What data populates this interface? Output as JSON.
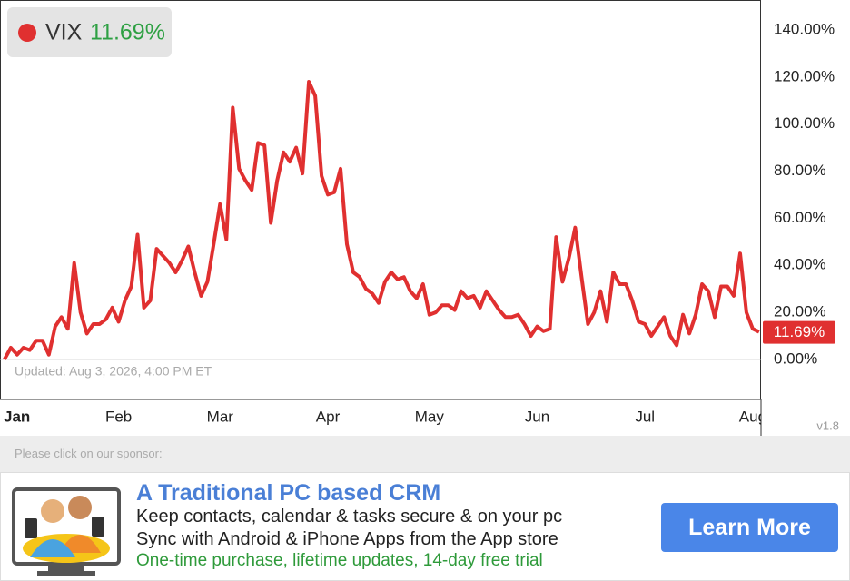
{
  "chart_data": {
    "type": "line",
    "title": "VIX",
    "last_value_label": "11.69%",
    "updated": "Updated: Aug 3, 2026, 4:00 PM ET",
    "version": "v1.8",
    "series": [
      {
        "name": "VIX",
        "color": "#e03030",
        "values": [
          0,
          5,
          2,
          5,
          4,
          8,
          8,
          2,
          14,
          18,
          13,
          41,
          20,
          11,
          15,
          15,
          17,
          22,
          16,
          25,
          31,
          53,
          22,
          25,
          47,
          44,
          41,
          37,
          42,
          48,
          37,
          27,
          33,
          49,
          66,
          51,
          107,
          81,
          76,
          72,
          92,
          91,
          58,
          76,
          88,
          84,
          90,
          79,
          118,
          112,
          78,
          70,
          71,
          81,
          49,
          37,
          35,
          30,
          28,
          24,
          33,
          37,
          34,
          35,
          29,
          26,
          32,
          19,
          20,
          23,
          23,
          21,
          29,
          26,
          27,
          22,
          29,
          25,
          21,
          18,
          18,
          19,
          15,
          10,
          14,
          12,
          13,
          52,
          33,
          43,
          56,
          35,
          15,
          20,
          29,
          16,
          37,
          32,
          32,
          25,
          16,
          15,
          10,
          14,
          18,
          10,
          6,
          19,
          11,
          19,
          32,
          29,
          18,
          31,
          31,
          27,
          45,
          20,
          13,
          11.69
        ]
      }
    ],
    "xlim": [
      -0.7,
      119.3
    ],
    "xticks": [
      {
        "value": 2,
        "label": "Jan"
      },
      {
        "value": 18,
        "label": "Feb"
      },
      {
        "value": 34,
        "label": "Mar"
      },
      {
        "value": 51,
        "label": "Apr"
      },
      {
        "value": 67,
        "label": "May"
      },
      {
        "value": 84,
        "label": "Jun"
      },
      {
        "value": 101,
        "label": "Jul"
      },
      {
        "value": 118,
        "label": "Aug"
      }
    ],
    "ylim": [
      -17,
      152.7
    ],
    "yticks": [
      {
        "value": 0,
        "label": "0.00%"
      },
      {
        "value": 20,
        "label": "20.00%"
      },
      {
        "value": 40,
        "label": "40.00%"
      },
      {
        "value": 60,
        "label": "60.00%"
      },
      {
        "value": 80,
        "label": "80.00%"
      },
      {
        "value": 100,
        "label": "100.00%"
      },
      {
        "value": 120,
        "label": "120.00%"
      },
      {
        "value": 140,
        "label": "140.00%"
      }
    ]
  },
  "sponsor_prompt": "Please click on our sponsor:",
  "ad": {
    "title": "A Traditional PC based CRM",
    "lines": [
      "Keep contacts, calendar & tasks secure & on your pc",
      "Sync with Android & iPhone Apps from the App store"
    ],
    "tagline": "One-time purchase, lifetime updates, 14-day free trial",
    "button": "Learn More"
  }
}
